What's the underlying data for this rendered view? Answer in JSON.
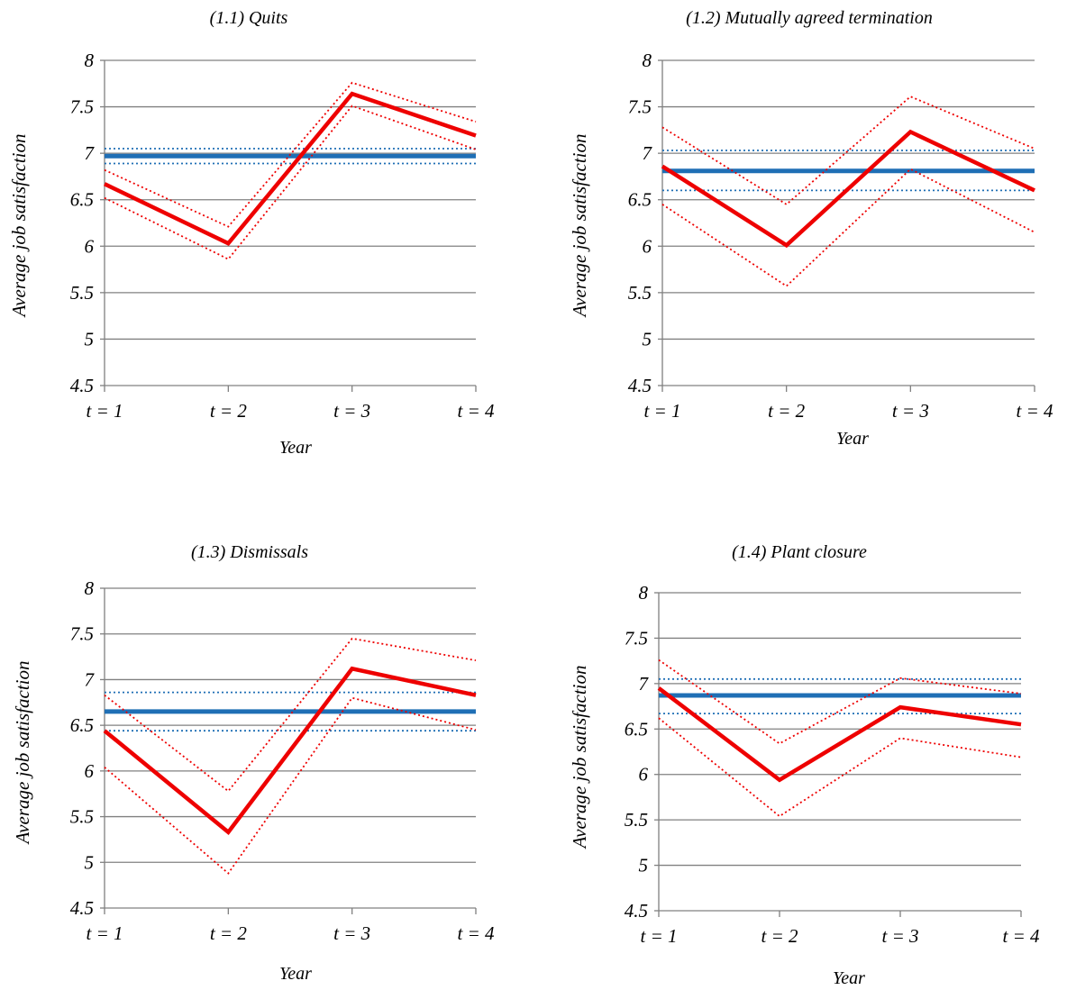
{
  "figure": {
    "colors": {
      "treated": "#ee0000",
      "treated_ci": "#ee0000",
      "control": "#1f6fb5",
      "control_ci": "#1f6fb5",
      "grid": "#808080",
      "axis": "#808080"
    }
  },
  "chart_data": [
    {
      "type": "line",
      "title": "(1.1) Quits",
      "xlabel": "Year",
      "ylabel": "Average job satisfaction",
      "categories": [
        "t = 1",
        "t = 2",
        "t = 3",
        "t = 4"
      ],
      "ylim": [
        4.5,
        8
      ],
      "yticks": [
        "4.5",
        "5",
        "5.5",
        "6",
        "6.5",
        "7",
        "7.5",
        "8"
      ],
      "grid": true,
      "legend": "none",
      "series": [
        {
          "role": "treated",
          "values": [
            6.67,
            6.03,
            7.64,
            7.19
          ]
        },
        {
          "role": "treated_upper",
          "values": [
            6.82,
            6.21,
            7.76,
            7.34
          ]
        },
        {
          "role": "treated_lower",
          "values": [
            6.52,
            5.86,
            7.51,
            7.04
          ]
        },
        {
          "role": "control",
          "values": [
            6.97,
            6.97,
            6.97,
            6.97
          ]
        },
        {
          "role": "control_upper",
          "values": [
            7.05,
            7.05,
            7.05,
            7.05
          ]
        },
        {
          "role": "control_lower",
          "values": [
            6.89,
            6.89,
            6.89,
            6.89
          ]
        }
      ]
    },
    {
      "type": "line",
      "title": "(1.2) Mutually agreed termination",
      "xlabel": "Year",
      "ylabel": "Average job satisfaction",
      "categories": [
        "t = 1",
        "t = 2",
        "t = 3",
        "t = 4"
      ],
      "ylim": [
        4.5,
        8
      ],
      "yticks": [
        "4.5",
        "5",
        "5.5",
        "6",
        "6.5",
        "7",
        "7.5",
        "8"
      ],
      "grid": true,
      "legend": "none",
      "series": [
        {
          "role": "treated",
          "values": [
            6.86,
            6.01,
            7.23,
            6.6
          ]
        },
        {
          "role": "treated_upper",
          "values": [
            7.28,
            6.45,
            7.61,
            7.05
          ]
        },
        {
          "role": "treated_lower",
          "values": [
            6.45,
            5.57,
            6.83,
            6.15
          ]
        },
        {
          "role": "control",
          "values": [
            6.81,
            6.81,
            6.81,
            6.81
          ]
        },
        {
          "role": "control_upper",
          "values": [
            7.03,
            7.03,
            7.03,
            7.03
          ]
        },
        {
          "role": "control_lower",
          "values": [
            6.6,
            6.6,
            6.6,
            6.6
          ]
        }
      ]
    },
    {
      "type": "line",
      "title": "(1.3) Dismissals",
      "xlabel": "Year",
      "ylabel": "Average job satisfaction",
      "categories": [
        "t = 1",
        "t = 2",
        "t = 3",
        "t = 4"
      ],
      "ylim": [
        4.5,
        8
      ],
      "yticks": [
        "4.5",
        "5",
        "5.5",
        "6",
        "6.5",
        "7",
        "7.5",
        "8"
      ],
      "grid": true,
      "legend": "none",
      "series": [
        {
          "role": "treated",
          "values": [
            6.44,
            5.33,
            7.12,
            6.83
          ]
        },
        {
          "role": "treated_upper",
          "values": [
            6.83,
            5.78,
            7.45,
            7.21
          ]
        },
        {
          "role": "treated_lower",
          "values": [
            6.04,
            4.88,
            6.8,
            6.45
          ]
        },
        {
          "role": "control",
          "values": [
            6.65,
            6.65,
            6.65,
            6.65
          ]
        },
        {
          "role": "control_upper",
          "values": [
            6.86,
            6.86,
            6.86,
            6.86
          ]
        },
        {
          "role": "control_lower",
          "values": [
            6.44,
            6.44,
            6.44,
            6.44
          ]
        }
      ]
    },
    {
      "type": "line",
      "title": "(1.4) Plant closure",
      "xlabel": "Year",
      "ylabel": "Average job satisfaction",
      "categories": [
        "t = 1",
        "t = 2",
        "t = 3",
        "t = 4"
      ],
      "ylim": [
        4.5,
        8
      ],
      "yticks": [
        "4.5",
        "5",
        "5.5",
        "6",
        "6.5",
        "7",
        "7.5",
        "8"
      ],
      "grid": true,
      "legend": "none",
      "series": [
        {
          "role": "treated",
          "values": [
            6.95,
            5.94,
            6.74,
            6.55
          ]
        },
        {
          "role": "treated_upper",
          "values": [
            7.26,
            6.34,
            7.06,
            6.89
          ]
        },
        {
          "role": "treated_lower",
          "values": [
            6.62,
            5.54,
            6.4,
            6.19
          ]
        },
        {
          "role": "control",
          "values": [
            6.87,
            6.87,
            6.87,
            6.87
          ]
        },
        {
          "role": "control_upper",
          "values": [
            7.05,
            7.05,
            7.05,
            7.05
          ]
        },
        {
          "role": "control_lower",
          "values": [
            6.67,
            6.67,
            6.67,
            6.67
          ]
        }
      ]
    }
  ]
}
